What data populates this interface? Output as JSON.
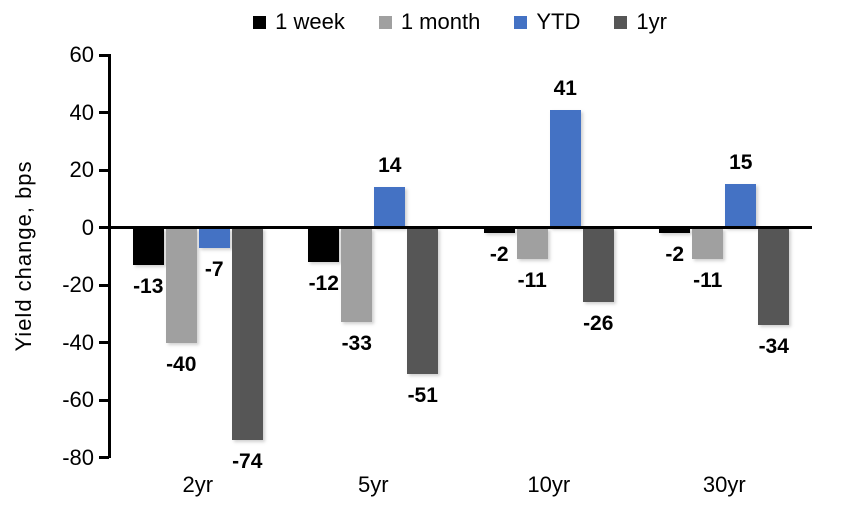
{
  "chart_data": {
    "type": "bar",
    "title": "",
    "ylabel": "Yield change, bps",
    "xlabel": "",
    "categories": [
      "2yr",
      "5yr",
      "10yr",
      "30yr"
    ],
    "series": [
      {
        "name": "1 week",
        "color": "#000000",
        "values": [
          -13,
          -12,
          -2,
          -2
        ]
      },
      {
        "name": "1 month",
        "color": "#A0A0A0",
        "values": [
          -40,
          -33,
          -11,
          -11
        ]
      },
      {
        "name": "YTD",
        "color": "#4472C4",
        "values": [
          -7,
          14,
          41,
          15
        ]
      },
      {
        "name": "1yr",
        "color": "#565656",
        "values": [
          -74,
          -51,
          -26,
          -34
        ]
      }
    ],
    "ylim": [
      -80,
      60
    ],
    "ytick_step": 20,
    "yticks": [
      60,
      40,
      20,
      0,
      -20,
      -40,
      -60,
      -80
    ],
    "grid": false,
    "legend_position": "top",
    "data_labels": true
  }
}
